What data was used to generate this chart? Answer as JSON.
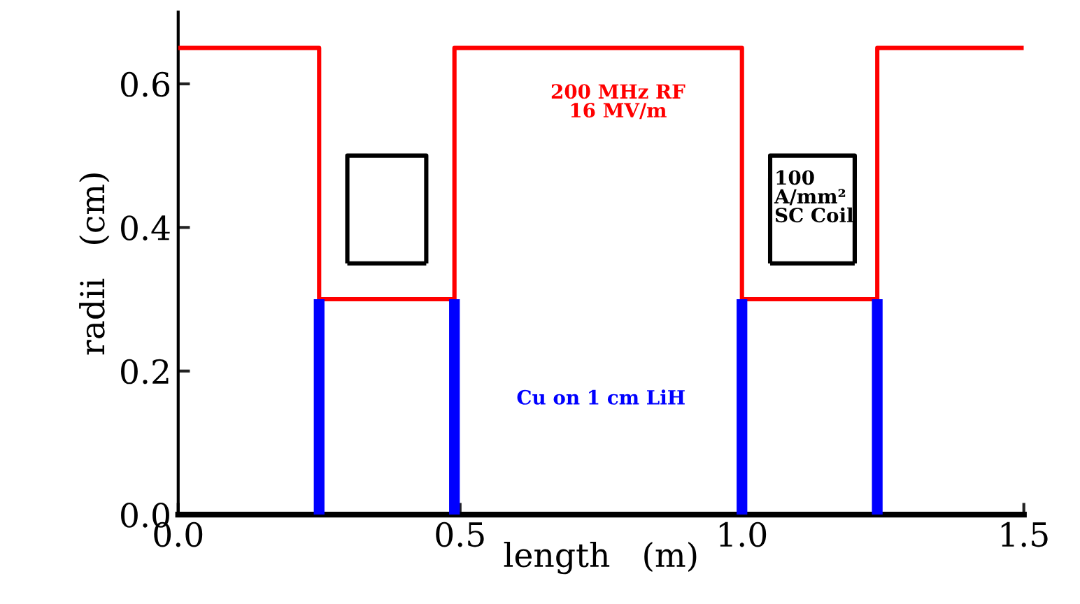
{
  "chart_data": {
    "type": "line",
    "xlabel": "length   (m)",
    "ylabel": "radii   (cm)",
    "xlim": [
      0,
      1.5
    ],
    "xticks": [
      {
        "value": 0,
        "label": "0.0"
      },
      {
        "value": 0.5,
        "label": "0.5"
      },
      {
        "value": 1.0,
        "label": "1.0"
      },
      {
        "value": 1.5,
        "label": "1.5"
      }
    ],
    "ylim": [
      0,
      0.7
    ],
    "yticks": [
      {
        "value": 0,
        "label": "0.0"
      },
      {
        "value": 0.2,
        "label": "0.2"
      },
      {
        "value": 0.4,
        "label": "0.4"
      },
      {
        "value": 0.6,
        "label": "0.6"
      }
    ],
    "grid": false,
    "legend": false,
    "marker": "none",
    "line_style": "solid",
    "series": [
      {
        "color": "#ff0000",
        "x": [
          0,
          0.25,
          0.25,
          0.49,
          0.49,
          1.0,
          1.0,
          1.24,
          1.24,
          1.5
        ],
        "values": [
          0.65,
          0.65,
          0.3,
          0.3,
          0.65,
          0.65,
          0.3,
          0.3,
          0.65,
          0.65
        ]
      },
      {
        "color": "#0000ff",
        "x": [
          0.25,
          0.25
        ],
        "values": [
          0,
          0.3
        ]
      },
      {
        "color": "#0000ff",
        "x": [
          0.49,
          0.49
        ],
        "values": [
          0,
          0.3
        ]
      },
      {
        "color": "#0000ff",
        "x": [
          1.0,
          1.0
        ],
        "values": [
          0,
          0.3
        ]
      },
      {
        "color": "#0000ff",
        "x": [
          1.24,
          1.24
        ],
        "values": [
          0,
          0.3
        ]
      },
      {
        "color": "#000000",
        "x": [
          0.3,
          0.3,
          0.44,
          0.44
        ],
        "values": [
          0.35,
          0.5,
          0.5,
          0.35
        ]
      },
      {
        "color": "#000000",
        "x": [
          0.3,
          0.44
        ],
        "values": [
          0.35,
          0.35
        ]
      },
      {
        "color": "#000000",
        "x": [
          1.05,
          1.05,
          1.2,
          1.2
        ],
        "values": [
          0.35,
          0.5,
          0.5,
          0.35
        ]
      },
      {
        "color": "#000000",
        "x": [
          1.05,
          1.2
        ],
        "values": [
          0.35,
          0.35
        ]
      }
    ],
    "annotations": [
      "200 MHz RF\n16 MV/m",
      "Cu on 1 cm LiH",
      "100\nA/mm²\nSC Coil"
    ]
  }
}
